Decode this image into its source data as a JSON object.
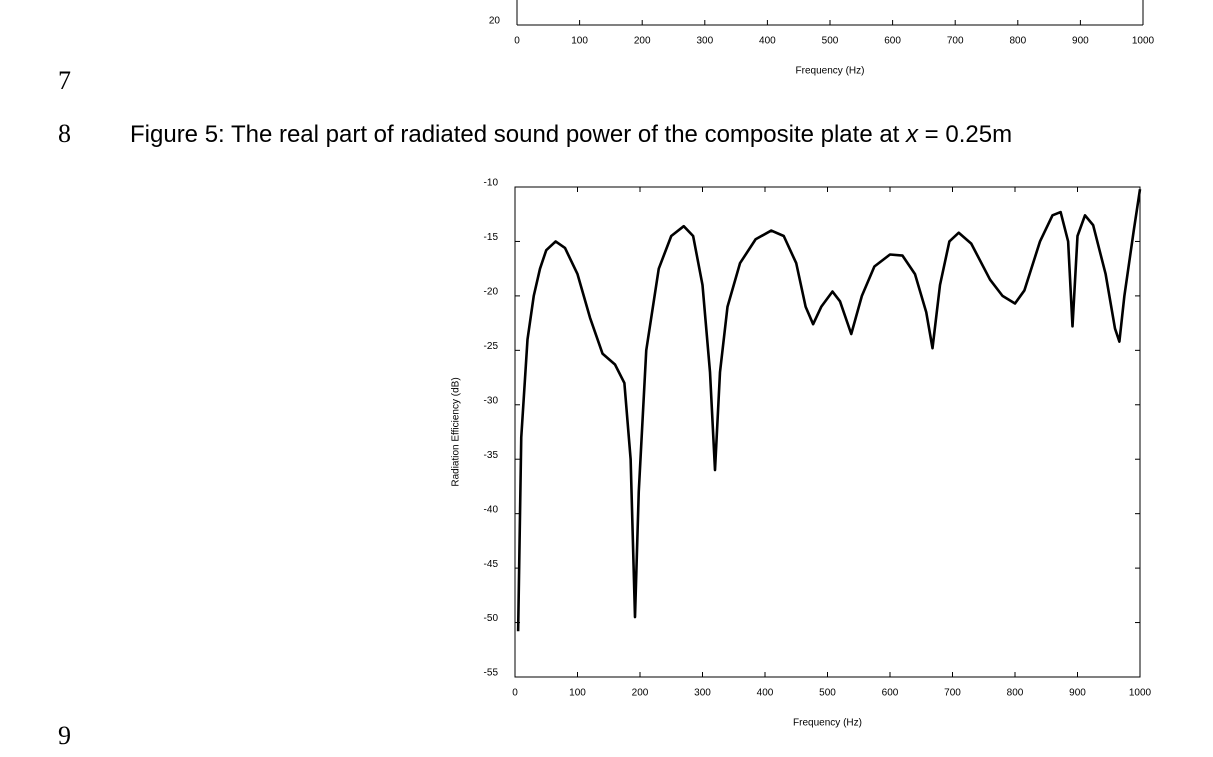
{
  "line_numbers": [
    "7",
    "8",
    "9"
  ],
  "caption": {
    "text": "Figure 5: The real part of radiated sound power of the composite plate at ",
    "variable": "x",
    "rest": " = 0.25m"
  },
  "chart_data": [
    {
      "type": "line",
      "xlabel": "Frequency (Hz)",
      "xlim": [
        0,
        1000
      ],
      "xticks": [
        0,
        100,
        200,
        300,
        400,
        500,
        600,
        700,
        800,
        900,
        1000
      ],
      "yticks": [
        20
      ]
    },
    {
      "type": "line",
      "xlabel": "Frequency (Hz)",
      "ylabel": "Radiation Efficiency (dB)",
      "xlim": [
        0,
        1000
      ],
      "ylim": [
        -55,
        -10
      ],
      "xticks": [
        0,
        100,
        200,
        300,
        400,
        500,
        600,
        700,
        800,
        900,
        1000
      ],
      "yticks": [
        -10,
        -15,
        -20,
        -25,
        -30,
        -35,
        -40,
        -45,
        -50,
        -55
      ],
      "x": [
        5,
        10,
        20,
        30,
        40,
        50,
        65,
        80,
        100,
        120,
        140,
        160,
        175,
        185,
        192,
        198,
        210,
        230,
        250,
        270,
        285,
        300,
        312,
        320,
        328,
        340,
        360,
        385,
        410,
        430,
        450,
        465,
        477,
        490,
        508,
        520,
        538,
        555,
        575,
        600,
        620,
        640,
        658,
        668,
        680,
        695,
        710,
        730,
        760,
        780,
        800,
        815,
        840,
        860,
        873,
        885,
        892,
        900,
        912,
        925,
        945,
        960,
        967,
        975,
        990,
        1000
      ],
      "series": [
        {
          "color": "#000000",
          "values": [
            -50.8,
            -33,
            -24,
            -20,
            -17.5,
            -15.8,
            -15,
            -15.6,
            -18,
            -22,
            -25.3,
            -26.3,
            -28,
            -35,
            -49.5,
            -38,
            -25,
            -17.5,
            -14.5,
            -13.6,
            -14.5,
            -19,
            -27,
            -36,
            -27,
            -21,
            -17,
            -14.8,
            -14,
            -14.5,
            -17,
            -21,
            -22.6,
            -21,
            -19.6,
            -20.5,
            -23.5,
            -20,
            -17.3,
            -16.2,
            -16.3,
            -18,
            -21.5,
            -24.8,
            -19,
            -15,
            -14.2,
            -15.2,
            -18.5,
            -20,
            -20.7,
            -19.5,
            -15,
            -12.6,
            -12.3,
            -15,
            -22.8,
            -14.5,
            -12.6,
            -13.5,
            -18,
            -23,
            -24.2,
            -20,
            -14,
            -10.2
          ]
        }
      ]
    }
  ]
}
